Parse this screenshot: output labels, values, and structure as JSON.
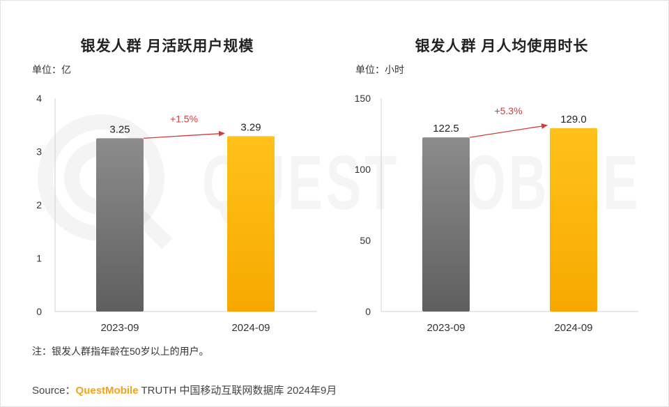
{
  "note": "注：银发人群指年龄在50岁以上的用户。",
  "source": {
    "prefix": "Source：",
    "brand": "QuestMobile",
    "suffix": " TRUTH 中国移动互联网数据库 2024年9月"
  },
  "watermark_text": "QUEST MOBILE",
  "colors": {
    "bar_2023": "#7a7a7a",
    "bar_2024": "#ffb400",
    "growth_arrow": "#d43a3a",
    "axis": "#cfcfcf"
  },
  "chart_data": [
    {
      "type": "bar",
      "title": "银发人群 月活跃用户规模",
      "unit": "单位：亿",
      "categories": [
        "2023-09",
        "2024-09"
      ],
      "values": [
        3.25,
        3.29
      ],
      "value_labels": [
        "3.25",
        "3.29"
      ],
      "y_ticks": [
        "0",
        "1",
        "2",
        "3",
        "4"
      ],
      "ylim": [
        0,
        4
      ],
      "growth_label": "+1.5%",
      "grid": false
    },
    {
      "type": "bar",
      "title": "银发人群 月人均使用时长",
      "unit": "单位：小时",
      "categories": [
        "2023-09",
        "2024-09"
      ],
      "values": [
        122.5,
        129.0
      ],
      "value_labels": [
        "122.5",
        "129.0"
      ],
      "y_ticks": [
        "0",
        "50",
        "100",
        "150"
      ],
      "ylim": [
        0,
        150
      ],
      "growth_label": "+5.3%",
      "grid": false
    }
  ]
}
